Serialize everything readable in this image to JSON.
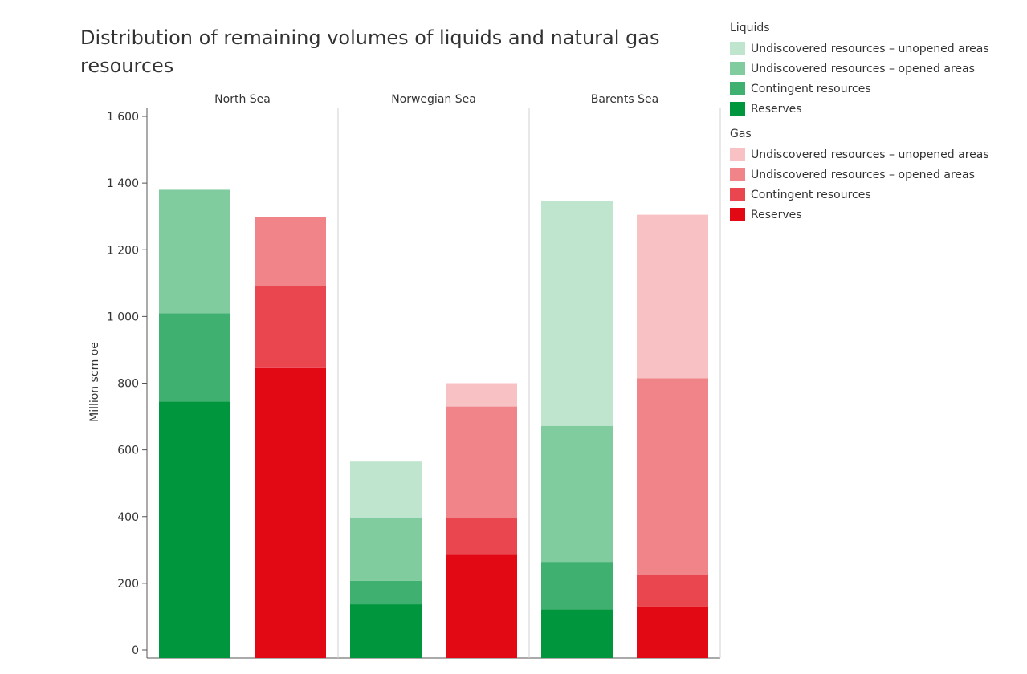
{
  "chart_data": {
    "type": "bar",
    "title": "Distribution of remaining volumes of liquids and natural gas resources",
    "ylabel": "Million scm oe",
    "ylim": [
      0,
      1600
    ],
    "yticks": [
      0,
      200,
      400,
      600,
      800,
      1000,
      1200,
      1400,
      1600
    ],
    "ytick_labels": [
      "0",
      "200",
      "400",
      "600",
      "800",
      "1 000",
      "1 200",
      "1 400",
      "1 600"
    ],
    "grid": false,
    "stacked": true,
    "legend_position": "right",
    "panels": [
      "North Sea",
      "Norwegian Sea",
      "Barents Sea"
    ],
    "groups": [
      {
        "name": "Liquids",
        "series": [
          {
            "name": "Reserves",
            "color": "#00963E",
            "values": [
              745,
              137,
              122
            ]
          },
          {
            "name": "Contingent resources",
            "color": "#40B070",
            "values": [
              265,
              70,
              140
            ]
          },
          {
            "name": "Undiscovered resources – opened areas",
            "color": "#80CC9F",
            "values": [
              370,
              190,
              410
            ]
          },
          {
            "name": "Undiscovered resources – unopened areas",
            "color": "#C0E5CF",
            "values": [
              0,
              168,
              675
            ]
          }
        ]
      },
      {
        "name": "Gas",
        "series": [
          {
            "name": "Reserves",
            "color": "#E30914",
            "values": [
              845,
              285,
              130
            ]
          },
          {
            "name": "Contingent resources",
            "color": "#EA464F",
            "values": [
              245,
              112,
              95
            ]
          },
          {
            "name": "Undiscovered resources – opened areas",
            "color": "#F18489",
            "values": [
              208,
              333,
              590
            ]
          },
          {
            "name": "Undiscovered resources – unopened areas",
            "color": "#F8C1C4",
            "values": [
              0,
              70,
              490
            ]
          }
        ]
      }
    ]
  },
  "legend": {
    "groups": [
      {
        "title": "Liquids",
        "items": [
          {
            "label": "Undiscovered resources – unopened areas",
            "color": "#C0E5CF"
          },
          {
            "label": "Undiscovered resources – opened areas",
            "color": "#80CC9F"
          },
          {
            "label": "Contingent resources",
            "color": "#40B070"
          },
          {
            "label": "Reserves",
            "color": "#00963E"
          }
        ]
      },
      {
        "title": "Gas",
        "items": [
          {
            "label": "Undiscovered resources – unopened areas",
            "color": "#F8C1C4"
          },
          {
            "label": "Undiscovered resources – opened areas",
            "color": "#F18489"
          },
          {
            "label": "Contingent resources",
            "color": "#EA464F"
          },
          {
            "label": "Reserves",
            "color": "#E30914"
          }
        ]
      }
    ]
  }
}
